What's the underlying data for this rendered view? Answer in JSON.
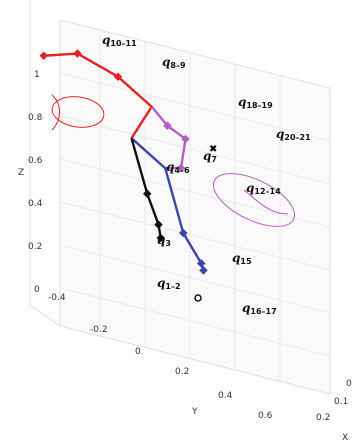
{
  "chart_data": {
    "type": "3d-line",
    "axes": {
      "x": {
        "label": "X",
        "ticks": [
          "0",
          "0.1",
          "0.2"
        ]
      },
      "y": {
        "label": "Y",
        "ticks": [
          "-0.4",
          "-0.2",
          "0",
          "0.2",
          "0.4",
          "0.6"
        ]
      },
      "z": {
        "label": "Z",
        "ticks": [
          "0",
          "0.2",
          "0.4",
          "0.6",
          "0.8",
          "1"
        ]
      }
    },
    "grid": true,
    "joint_labels": [
      {
        "key": "q10_11",
        "base": "q",
        "sub": "10–11"
      },
      {
        "key": "q8_9",
        "base": "q",
        "sub": "8–9"
      },
      {
        "key": "q18_19",
        "base": "q",
        "sub": "18–19"
      },
      {
        "key": "q20_21",
        "base": "q",
        "sub": "20–21"
      },
      {
        "key": "q7",
        "base": "q",
        "sub": "7"
      },
      {
        "key": "q4_6",
        "base": "q",
        "sub": "4–6"
      },
      {
        "key": "q12_14",
        "base": "q",
        "sub": "12–14"
      },
      {
        "key": "q3",
        "base": "q",
        "sub": "3"
      },
      {
        "key": "q15",
        "base": "q",
        "sub": "15"
      },
      {
        "key": "q1_2",
        "base": "q",
        "sub": "1–2"
      },
      {
        "key": "q16_17",
        "base": "q",
        "sub": "16–17"
      }
    ],
    "series": [
      {
        "color": "#e02424",
        "points": [
          [
            0.06,
            -0.06,
            0.7
          ],
          [
            0.06,
            0.03,
            0.87
          ],
          [
            0.06,
            -0.12,
            0.97
          ],
          [
            0.06,
            -0.3,
            1.03
          ],
          [
            0.06,
            -0.45,
            0.98
          ]
        ],
        "marker_indices": [
          2,
          3,
          4
        ]
      },
      {
        "color": "#b65dc8",
        "points": [
          [
            0.06,
            0.03,
            0.87
          ],
          [
            0.06,
            0.1,
            0.8
          ],
          [
            0.06,
            0.18,
            0.76
          ],
          [
            0.06,
            0.16,
            0.62
          ]
        ],
        "marker_indices": [
          1,
          2,
          3
        ]
      },
      {
        "color": "#b65dc8",
        "points": [
          [
            0.06,
            0.16,
            0.62
          ],
          [
            0.06,
            0.09,
            0.6
          ]
        ],
        "marker_indices": []
      },
      {
        "color": "#3b45a8",
        "points": [
          [
            0.06,
            -0.06,
            0.7
          ],
          [
            0.06,
            0.09,
            0.6
          ],
          [
            0.06,
            0.17,
            0.32
          ],
          [
            0.06,
            0.25,
            0.2
          ],
          [
            0.06,
            0.26,
            0.17
          ]
        ],
        "marker_indices": [
          2,
          3,
          4
        ]
      },
      {
        "color": "#111111",
        "points": [
          [
            0.06,
            -0.06,
            0.7
          ],
          [
            0.06,
            0.01,
            0.46
          ],
          [
            0.06,
            0.06,
            0.33
          ],
          [
            0.06,
            0.07,
            0.27
          ]
        ],
        "marker_indices": [
          1,
          2,
          3
        ]
      }
    ],
    "ellipses": [
      {
        "color": "#e02424",
        "near": "q10_11"
      },
      {
        "color": "#b65dc8",
        "near": "q12_14"
      }
    ]
  }
}
